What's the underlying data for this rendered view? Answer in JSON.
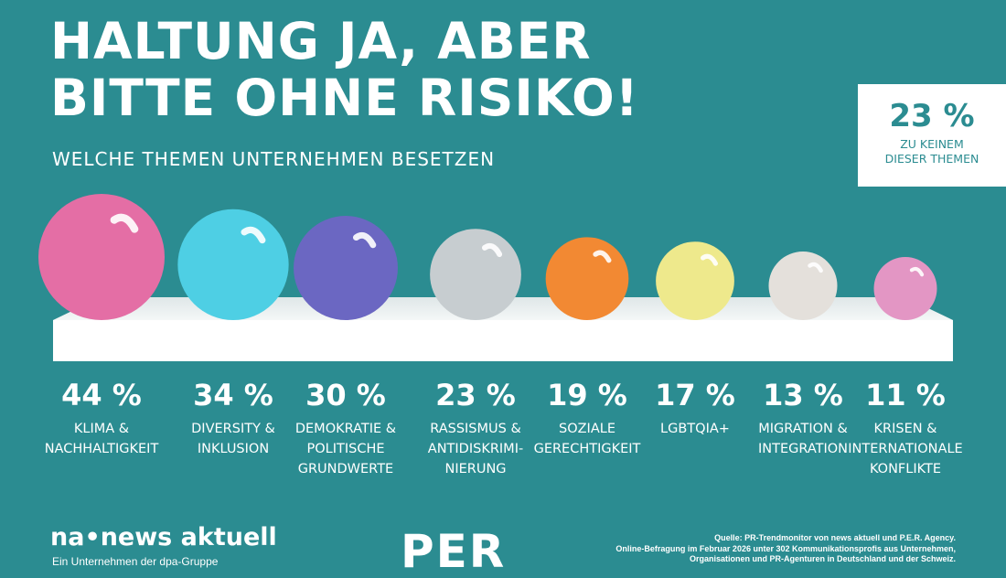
{
  "title_line1": "HALTUNG JA, ABER",
  "title_line2": "BITTE OHNE RISIKO!",
  "subtitle": "WELCHE THEMEN UNTERNEHMEN BESETZEN",
  "callout": {
    "value": "23 %",
    "text": "ZU KEINEM\nDIESER THEMEN"
  },
  "chart_data": {
    "type": "bar",
    "unit": "%",
    "categories": [
      "KLIMA &\nNACHHALTIGKEIT",
      "DIVERSITY &\nINKLUSION",
      "DEMOKRATIE &\nPOLITISCHE\nGRUNDWERTE",
      "RASSISMUS &\nANTIDISKRIMI-\nNIERUNG",
      "SOZIALE\nGERECHTIGKEIT",
      "LGBTQIA+",
      "MIGRATION &\nINTEGRATION",
      "KRISEN &\nINTERNATIONALE\nKONFLIKTE"
    ],
    "values": [
      44,
      34,
      30,
      23,
      19,
      17,
      13,
      11
    ],
    "value_labels": [
      "44 %",
      "34 %",
      "30 %",
      "23 %",
      "19 %",
      "17 %",
      "13 %",
      "11 %"
    ],
    "colors": [
      "#e46ea5",
      "#4ecfe4",
      "#6b67c2",
      "#c7cdd0",
      "#f28933",
      "#eee98c",
      "#e4e0db",
      "#e396c4"
    ]
  },
  "logos": {
    "news_aktuell": "na•news aktuell",
    "news_aktuell_sub": "Ein Unternehmen der dpa-Gruppe",
    "per": "PER"
  },
  "source": "Quelle: PR-Trendmonitor von news aktuell und P.E.R. Agency.\nOnline-Befragung im Februar 2026 unter 302 Kommunikationsprofis aus Unternehmen,\nOrganisationen und PR-Agenturen in Deutschland und der Schweiz."
}
